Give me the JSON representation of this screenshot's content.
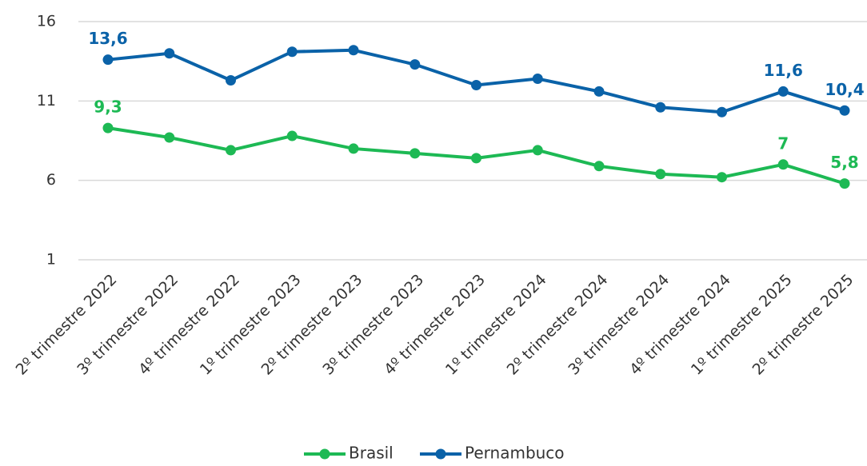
{
  "chart_data": {
    "type": "line",
    "categories": [
      "2º trimestre 2022",
      "3º trimestre 2022",
      "4º trimestre 2022",
      "1º trimestre 2023",
      "2º trimestre 2023",
      "3º trimestre 2023",
      "4º trimestre 2023",
      "1º trimestre 2024",
      "2º trimestre 2024",
      "3º trimestre 2024",
      "4º trimestre 2024",
      "1º trimestre 2025",
      "2º trimestre 2025"
    ],
    "series": [
      {
        "name": "Brasil",
        "color": "#1db954",
        "values": [
          9.3,
          8.7,
          7.9,
          8.8,
          8.0,
          7.7,
          7.4,
          7.9,
          6.9,
          6.4,
          6.2,
          7.0,
          5.8
        ],
        "value_labels": [
          "9,3",
          null,
          null,
          null,
          null,
          null,
          null,
          null,
          null,
          null,
          null,
          "7",
          "5,8"
        ]
      },
      {
        "name": "Pernambuco",
        "color": "#0a62a8",
        "values": [
          13.6,
          14.0,
          12.3,
          14.1,
          14.2,
          13.3,
          12.0,
          12.4,
          11.6,
          10.6,
          10.3,
          11.6,
          10.4
        ],
        "value_labels": [
          "13,6",
          null,
          null,
          null,
          null,
          null,
          null,
          null,
          null,
          null,
          null,
          "11,6",
          "10,4"
        ]
      }
    ],
    "ylim": [
      1,
      16
    ],
    "yticks": [
      1,
      6,
      11,
      16
    ],
    "grid": true,
    "legend": "bottom"
  }
}
